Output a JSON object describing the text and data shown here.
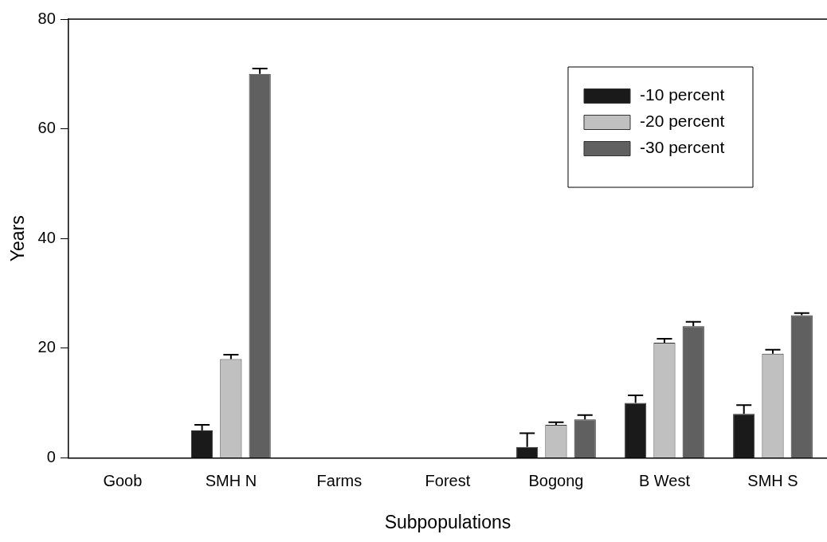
{
  "chart_data": {
    "type": "bar",
    "xlabel": "Subpopulations",
    "ylabel": "Years",
    "categories": [
      "Goob",
      "SMH N",
      "Farms",
      "Forest",
      "Bogong",
      "B West",
      "SMH S"
    ],
    "series": [
      {
        "name": "-10 percent",
        "color": "#1a1a1a",
        "values": [
          null,
          5,
          null,
          null,
          2,
          10,
          8
        ],
        "errors": [
          null,
          [
            5,
            6
          ],
          null,
          null,
          [
            2,
            4.5
          ],
          [
            10,
            11.4
          ],
          [
            8,
            9.6
          ]
        ]
      },
      {
        "name": "-20 percent",
        "color": "#c0c0c0",
        "values": [
          null,
          18,
          null,
          null,
          6,
          21,
          19
        ],
        "errors": [
          null,
          [
            18,
            18.8
          ],
          null,
          null,
          [
            6,
            6.5
          ],
          [
            21,
            21.7
          ],
          [
            19,
            19.7
          ]
        ]
      },
      {
        "name": "-30 percent",
        "color": "#606060",
        "values": [
          null,
          70,
          null,
          null,
          7,
          24,
          26
        ],
        "errors": [
          null,
          [
            70,
            71
          ],
          null,
          null,
          [
            7,
            7.8
          ],
          [
            24,
            24.8
          ],
          [
            26,
            26.4
          ]
        ]
      }
    ],
    "ylim": [
      0,
      80
    ],
    "yticks": [
      0,
      20,
      40,
      60,
      80
    ],
    "grid": false,
    "legend": "top right"
  }
}
